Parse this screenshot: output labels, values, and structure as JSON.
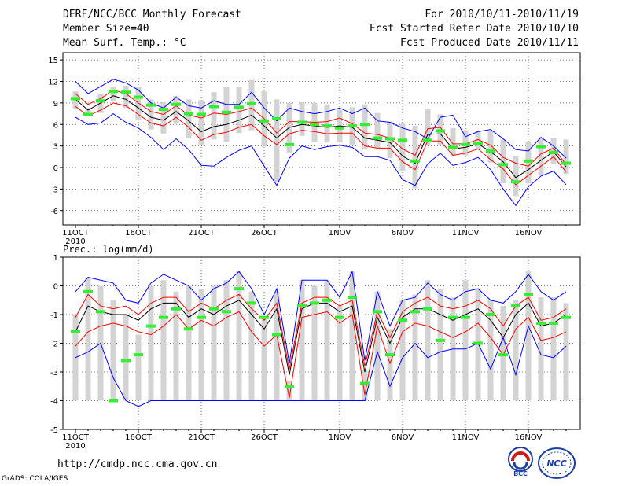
{
  "header": {
    "title": "DERF/NCC/BCC Monthly Forecast",
    "member_size": "Member Size=40",
    "variable": "Mean Surf. Temp.: °C",
    "period": "For 2010/10/11-2010/11/19",
    "start_date": "Fcst Started Refer Date 2010/10/10",
    "produced_date": "Fcst Produced Date 2010/11/11"
  },
  "footer": {
    "url": "http://cmdp.ncc.cma.gov.cn",
    "credit": "GrADS: COLA/IGES",
    "logo_left_text": "BCC",
    "logo_right_text": "NCC"
  },
  "colors": {
    "envelope": "#0000ff",
    "spread": "#ff0000",
    "mean": "#000000",
    "obs": "#33ee33",
    "bar": "#d3d3d3"
  },
  "chart_data": [
    {
      "type": "line",
      "title": "",
      "ylabel": "Mean Surf. Temp.: °C",
      "ylim": [
        -8,
        16
      ],
      "yticks": [
        -6,
        -3,
        0,
        3,
        6,
        9,
        12,
        15
      ],
      "grid": true,
      "xtick_labels": [
        "11OCT",
        "16OCT",
        "21OCT",
        "26OCT",
        "1NOV",
        "6NOV",
        "11NOV",
        "16NOV"
      ],
      "xtick_days": [
        1,
        6,
        11,
        16,
        22,
        27,
        32,
        37
      ],
      "year_label": "2010",
      "days": [
        1,
        2,
        3,
        4,
        5,
        6,
        7,
        8,
        9,
        10,
        11,
        12,
        13,
        14,
        15,
        16,
        17,
        18,
        19,
        20,
        21,
        22,
        23,
        24,
        25,
        26,
        27,
        28,
        29,
        30,
        31,
        32,
        33,
        34,
        35,
        36,
        37,
        38,
        39,
        40
      ],
      "series": [
        {
          "name": "max",
          "values": [
            12,
            10.3,
            11.3,
            12.3,
            11.8,
            10.8,
            9,
            8.3,
            9.8,
            8.6,
            8.3,
            9.3,
            8.8,
            8.8,
            10.5,
            8.3,
            6.5,
            8.3,
            7.8,
            7.5,
            7.8,
            8.3,
            7.5,
            8.3,
            6.5,
            6.3,
            5.5,
            5,
            4,
            7,
            7.3,
            4.3,
            5,
            5.3,
            4,
            2.5,
            2.3,
            4.2,
            3,
            1.3
          ]
        },
        {
          "name": "upper",
          "values": [
            10.3,
            8.8,
            9.6,
            10.8,
            10.3,
            9,
            7.8,
            7.4,
            8.6,
            7.3,
            6.9,
            7.6,
            7.4,
            7.8,
            8.3,
            6.8,
            4.8,
            6.4,
            6.4,
            6.3,
            6.4,
            6.9,
            6.1,
            4.8,
            4.6,
            4.1,
            2.6,
            1.7,
            5.4,
            5.6,
            3.3,
            3.3,
            3.9,
            3.1,
            1.4,
            0.6,
            0.2,
            1.9,
            2.7,
            0.4
          ]
        },
        {
          "name": "mean",
          "values": [
            9.5,
            8,
            9,
            10,
            9.5,
            8.3,
            7,
            6.6,
            7.8,
            6.5,
            5,
            5.7,
            6,
            6.6,
            7.3,
            5.8,
            4.1,
            5.6,
            6,
            5.8,
            5.6,
            5.8,
            5.6,
            4.1,
            3.8,
            3.5,
            1.6,
            0.6,
            4.6,
            4.7,
            2.6,
            2.8,
            3.3,
            2.2,
            0.8,
            -1.4,
            -0.3,
            1,
            2.2,
            0.1
          ]
        },
        {
          "name": "lower",
          "values": [
            8.5,
            7.2,
            8,
            9,
            8.6,
            7.4,
            6.2,
            5.8,
            7,
            5.6,
            3.8,
            4.6,
            4.9,
            5.6,
            6,
            4.4,
            3.2,
            4.7,
            5.2,
            5,
            4.7,
            4.8,
            4.8,
            3,
            2.7,
            2.7,
            0.8,
            -0.3,
            3.7,
            3.7,
            1.7,
            2,
            2.6,
            1.1,
            -0.2,
            -2.4,
            -1.1,
            0.2,
            1.5,
            -0.6
          ]
        },
        {
          "name": "min",
          "values": [
            7,
            6,
            6.2,
            7.5,
            6.3,
            5.5,
            4.2,
            2.5,
            4,
            2.5,
            0.3,
            0.2,
            1.4,
            2.4,
            3,
            0.2,
            -2.5,
            1.3,
            3,
            2.5,
            2.9,
            3.1,
            2.8,
            1.5,
            1.5,
            1,
            -1.7,
            -2.5,
            0.5,
            2,
            0.3,
            0.7,
            1.4,
            -0.3,
            -3,
            -5.3,
            -2.7,
            -1.2,
            -0.5,
            -2.4
          ]
        },
        {
          "name": "observed",
          "values": [
            9.6,
            7.4,
            9.3,
            10.6,
            10.5,
            9.8,
            8.7,
            8.1,
            8.8,
            7.5,
            7.4,
            8.5,
            7.7,
            8.4,
            8.9,
            6.5,
            6.8,
            3.2,
            6.3,
            6,
            5.8,
            5.5,
            5.8,
            6,
            4.1,
            4,
            3.8,
            0.9,
            3.8,
            5.1,
            2.8,
            3.2,
            3.4,
            2.3,
            0.4,
            -2,
            0.9,
            2.9,
            2.1,
            0.6
          ]
        },
        {
          "name": "bar_top",
          "values": [
            10.6,
            8.3,
            10.2,
            11.2,
            11.4,
            11.3,
            9.5,
            9.1,
            10,
            9.5,
            9.4,
            10.5,
            11.2,
            11.2,
            12.2,
            10.6,
            9.5,
            9,
            9.1,
            9,
            8.8,
            8,
            8.4,
            8.8,
            7.6,
            6.4,
            6.1,
            5.8,
            8.2,
            7.4,
            5.5,
            5.2,
            5.1,
            5.1,
            3.9,
            1.6,
            3.5,
            4.1,
            4.1,
            3.9
          ]
        },
        {
          "name": "bar_bottom",
          "values": [
            8.1,
            7.1,
            7.6,
            9.3,
            8.3,
            6.7,
            5.3,
            4.6,
            6.2,
            4.1,
            3.2,
            3.9,
            3.6,
            4.8,
            5.2,
            2.9,
            -2,
            2.1,
            4.4,
            3.5,
            3.5,
            3.5,
            3.2,
            2.5,
            2.7,
            1.3,
            -0.5,
            -2.9,
            3.2,
            3.2,
            1.6,
            1.7,
            2.5,
            0.7,
            -2.2,
            -4,
            -2.2,
            -1,
            0.5,
            -0.9
          ]
        }
      ]
    },
    {
      "type": "line",
      "title": "",
      "ylabel": "Prec.: log(mm/d)",
      "ylim": [
        -5,
        1
      ],
      "yticks": [
        -5,
        -4,
        -3,
        -2,
        -1,
        0,
        1
      ],
      "grid": true,
      "xtick_labels": [
        "11OCT",
        "16OCT",
        "21OCT",
        "26OCT",
        "1NOV",
        "6NOV",
        "11NOV",
        "16NOV"
      ],
      "xtick_days": [
        1,
        6,
        11,
        16,
        22,
        27,
        32,
        37
      ],
      "year_label": "2010",
      "days": [
        1,
        2,
        3,
        4,
        5,
        6,
        7,
        8,
        9,
        10,
        11,
        12,
        13,
        14,
        15,
        16,
        17,
        18,
        19,
        20,
        21,
        22,
        23,
        24,
        25,
        26,
        27,
        28,
        29,
        30,
        31,
        32,
        33,
        34,
        35,
        36,
        37,
        38,
        39,
        40
      ],
      "series": [
        {
          "name": "max",
          "values": [
            -0.2,
            0.3,
            0.2,
            0.1,
            -0.5,
            -0.6,
            0.1,
            0.4,
            0.2,
            0,
            -0.5,
            -0.1,
            0.1,
            0.5,
            -0.1,
            -1,
            -0.1,
            -2.7,
            0.2,
            0.2,
            0.2,
            -0.4,
            0.5,
            -2.6,
            -0.2,
            -1.4,
            -0.5,
            -0.4,
            0.1,
            -0.3,
            -0.5,
            -0.2,
            -0.1,
            -0.5,
            -0.6,
            -0.2,
            0.4,
            -0.2,
            -0.5,
            -0.2
          ]
        },
        {
          "name": "upper",
          "values": [
            -1.1,
            -0.3,
            -0.7,
            -0.8,
            -0.7,
            -1,
            -0.6,
            -0.4,
            -0.4,
            -0.9,
            -0.6,
            -0.8,
            -0.5,
            -0.3,
            -0.8,
            -1.2,
            -0.6,
            -2.9,
            -0.6,
            -0.4,
            -0.4,
            -0.7,
            -0.5,
            -2.8,
            -0.9,
            -1.8,
            -0.9,
            -0.6,
            -0.4,
            -0.7,
            -0.8,
            -0.7,
            -0.5,
            -0.8,
            -1.4,
            -0.7,
            -0.4,
            -1.2,
            -1.1,
            -0.8
          ]
        },
        {
          "name": "mean",
          "values": [
            -1.6,
            -0.7,
            -0.9,
            -1,
            -1,
            -1.2,
            -0.8,
            -0.6,
            -0.6,
            -1.1,
            -0.8,
            -1,
            -0.7,
            -0.5,
            -1,
            -1.5,
            -0.8,
            -3.1,
            -0.8,
            -0.6,
            -0.6,
            -0.9,
            -0.7,
            -3,
            -1.1,
            -2,
            -1.1,
            -0.8,
            -0.8,
            -1,
            -1.2,
            -1,
            -0.8,
            -1.2,
            -1.8,
            -1,
            -0.6,
            -1.4,
            -1.3,
            -1
          ]
        },
        {
          "name": "lower",
          "values": [
            -2.1,
            -1.6,
            -1.4,
            -1.3,
            -1.4,
            -1.6,
            -1.7,
            -1.4,
            -1,
            -1.5,
            -1.2,
            -1.4,
            -1.1,
            -0.9,
            -1.6,
            -2.1,
            -1.7,
            -3.9,
            -1.1,
            -1,
            -0.9,
            -1.3,
            -1,
            -3.8,
            -1.4,
            -2.7,
            -1.6,
            -1.3,
            -1.4,
            -1.6,
            -1.8,
            -1.6,
            -1.3,
            -1.8,
            -2.4,
            -1.5,
            -1.1,
            -1.9,
            -1.8,
            -1.6
          ]
        },
        {
          "name": "min",
          "values": [
            -2.5,
            -2.3,
            -2,
            -3.2,
            -4,
            -4.2,
            -4,
            -4,
            -4,
            -4,
            -4,
            -4,
            -4,
            -4,
            -4,
            -4,
            -4,
            -4,
            -4,
            -4,
            -4,
            -4,
            -4,
            -4,
            -2.3,
            -3.5,
            -2.5,
            -2,
            -2.5,
            -2.3,
            -2.2,
            -2.2,
            -2,
            -2.9,
            -1.8,
            -3.1,
            -1.4,
            -2.4,
            -2.5,
            -2.1
          ]
        },
        {
          "name": "observed",
          "values": [
            -1.6,
            -0.2,
            -0.9,
            -4,
            -2.6,
            -2.4,
            -1.4,
            -1.1,
            -0.8,
            -1.5,
            -1.1,
            -0.8,
            -0.9,
            -0.1,
            -0.6,
            -1.1,
            -1.7,
            -3.5,
            -0.7,
            -0.6,
            -0.5,
            -1.1,
            -0.4,
            -3.4,
            -0.9,
            -2.4,
            -1.2,
            -0.9,
            -0.8,
            -1.9,
            -1.1,
            -1.1,
            -2,
            -1,
            -2.4,
            -0.7,
            -0.3,
            -1.3,
            -1.3,
            -1.1
          ]
        },
        {
          "name": "bar_top",
          "values": [
            -1,
            0.3,
            0,
            -0.5,
            -1,
            -1.7,
            0,
            0.2,
            -0.2,
            0,
            -0.1,
            0,
            0.2,
            0.5,
            -0.2,
            -1.1,
            -0.2,
            -3.3,
            0.2,
            0,
            0.2,
            -0.7,
            0.5,
            -2.9,
            -0.2,
            -1.5,
            -0.5,
            -0.3,
            0.2,
            -0.1,
            -0.4,
            0.2,
            -0.1,
            -0.5,
            -0.7,
            -0.5,
            0.5,
            -0.4,
            -0.4,
            -0.6
          ]
        },
        {
          "name": "bar_bottom",
          "values": [
            -4,
            -4,
            -4,
            -4,
            -4,
            -4,
            -4,
            -4,
            -4,
            -4,
            -4,
            -4,
            -4,
            -4,
            -4,
            -4,
            -4,
            -4,
            -4,
            -4,
            -4,
            -4,
            -4,
            -4,
            -4,
            -4,
            -4,
            -4,
            -4,
            -4,
            -4,
            -4,
            -4,
            -4,
            -4,
            -4,
            -4,
            -4,
            -4,
            -4
          ]
        }
      ]
    }
  ]
}
